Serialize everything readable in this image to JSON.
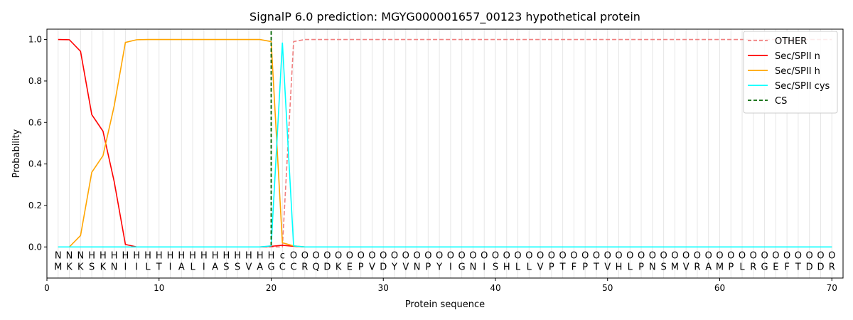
{
  "chart_data": {
    "type": "line",
    "title": "SignalP 6.0 prediction: MGYG000001657_00123 hypothetical protein",
    "xlabel": "Protein sequence",
    "ylabel": "Probability",
    "xlim": [
      0,
      71
    ],
    "ylim": [
      -0.15,
      1.05
    ],
    "x_ticks": [
      0,
      10,
      20,
      30,
      40,
      50,
      60,
      70
    ],
    "y_ticks": [
      0.0,
      0.2,
      0.4,
      0.6,
      0.8,
      1.0
    ],
    "x_tick_labels": [
      "0",
      "10",
      "20",
      "30",
      "40",
      "50",
      "60",
      "70"
    ],
    "y_tick_labels": [
      "0.0",
      "0.2",
      "0.4",
      "0.6",
      "0.8",
      "1.0"
    ],
    "grid": "vertical lines at each residue",
    "legend_position": "top-right",
    "sequence": "MKKSKNIILTIALIASSVAGCCRQDKEPVDYVNPYIGNISHLLVPTFPTVHLPNSMVRAMPLRGEFTDDR",
    "labels": "NNNHHHHHHHHHHHHHHHHHcOOOOOOOOOOOOOOOOOOOOOOOOOOOOOOOOOOOOOOOOOOOOOOOOOO",
    "label_colors": {
      "N": "#ff0000",
      "H": "#ffa500",
      "c": "#00e5ee",
      "O": "#808080"
    },
    "cleavage_site": 20,
    "series": [
      {
        "name": "OTHER",
        "color": "#f08080",
        "dash": "dashed",
        "values": [
          0,
          0,
          0,
          0,
          0,
          0,
          0,
          0,
          0,
          0,
          0,
          0,
          0,
          0,
          0,
          0,
          0,
          0,
          0,
          0,
          0.0,
          0.99,
          1,
          1,
          1,
          1,
          1,
          1,
          1,
          1,
          1,
          1,
          1,
          1,
          1,
          1,
          1,
          1,
          1,
          1,
          1,
          1,
          1,
          1,
          1,
          1,
          1,
          1,
          1,
          1,
          1,
          1,
          1,
          1,
          1,
          1,
          1,
          1,
          1,
          1,
          1,
          1,
          1,
          1,
          1,
          1,
          1,
          1,
          1,
          1
        ]
      },
      {
        "name": "Sec/SPII n",
        "color": "#ff0000",
        "dash": "solid",
        "values": [
          1.0,
          0.999,
          0.943,
          0.638,
          0.558,
          0.315,
          0.012,
          0,
          0,
          0,
          0,
          0,
          0,
          0,
          0,
          0,
          0,
          0,
          0,
          0.003,
          0.008,
          0.003,
          0,
          0,
          0,
          0,
          0,
          0,
          0,
          0,
          0,
          0,
          0,
          0,
          0,
          0,
          0,
          0,
          0,
          0,
          0,
          0,
          0,
          0,
          0,
          0,
          0,
          0,
          0,
          0,
          0,
          0,
          0,
          0,
          0,
          0,
          0,
          0,
          0,
          0,
          0,
          0,
          0,
          0,
          0,
          0,
          0,
          0,
          0,
          0
        ]
      },
      {
        "name": "Sec/SPII h",
        "color": "#ffa500",
        "dash": "solid",
        "values": [
          0,
          0,
          0.055,
          0.36,
          0.44,
          0.68,
          0.986,
          0.999,
          1,
          1,
          1,
          1,
          1,
          1,
          1,
          1,
          1,
          1,
          1,
          0.99,
          0.02,
          0.005,
          0,
          0,
          0,
          0,
          0,
          0,
          0,
          0,
          0,
          0,
          0,
          0,
          0,
          0,
          0,
          0,
          0,
          0,
          0,
          0,
          0,
          0,
          0,
          0,
          0,
          0,
          0,
          0,
          0,
          0,
          0,
          0,
          0,
          0,
          0,
          0,
          0,
          0,
          0,
          0,
          0,
          0,
          0,
          0,
          0,
          0,
          0,
          0
        ]
      },
      {
        "name": "Sec/SPII cys",
        "color": "#00ffff",
        "dash": "solid",
        "values": [
          0,
          0,
          0,
          0,
          0,
          0,
          0,
          0,
          0,
          0,
          0,
          0,
          0,
          0,
          0,
          0,
          0,
          0,
          0,
          0.005,
          0.985,
          0.005,
          0,
          0,
          0,
          0,
          0,
          0,
          0,
          0,
          0,
          0,
          0,
          0,
          0,
          0,
          0,
          0,
          0,
          0,
          0,
          0,
          0,
          0,
          0,
          0,
          0,
          0,
          0,
          0,
          0,
          0,
          0,
          0,
          0,
          0,
          0,
          0,
          0,
          0,
          0,
          0,
          0,
          0,
          0,
          0,
          0,
          0,
          0,
          0
        ]
      },
      {
        "name": "CS",
        "color": "#006400",
        "dash": "dashed",
        "type": "vline",
        "x": 20
      }
    ]
  }
}
